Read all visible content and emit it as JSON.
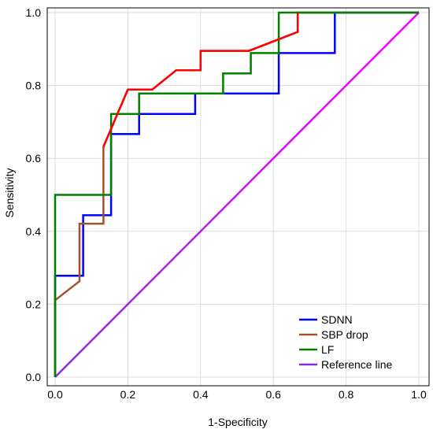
{
  "chart_data": {
    "type": "line",
    "title": "",
    "xlabel": "1-Specificity",
    "ylabel": "Sensitivity",
    "xlim": [
      0,
      1
    ],
    "ylim": [
      0,
      1
    ],
    "x_ticks": [
      "0.0",
      "0.2",
      "0.4",
      "0.6",
      "0.8",
      "1.0"
    ],
    "y_ticks": [
      "0.0",
      "0.2",
      "0.4",
      "0.6",
      "0.8",
      "1.0"
    ],
    "grid": true,
    "legend_position": "bottom-right",
    "series": [
      {
        "name": "SDNN",
        "color": "#0000ff",
        "x": [
          0,
          0,
          0.077,
          0.077,
          0.154,
          0.154,
          0.231,
          0.231,
          0.385,
          0.385,
          0.615,
          0.615,
          0.769,
          0.769,
          1.0
        ],
        "y": [
          0,
          0.278,
          0.278,
          0.444,
          0.444,
          0.667,
          0.667,
          0.722,
          0.722,
          0.778,
          0.778,
          0.889,
          0.889,
          1.0,
          1.0
        ]
      },
      {
        "name": "SBP drop",
        "color": "#a0522d",
        "x": [
          0,
          0,
          0.067,
          0.067,
          0.133,
          0.133,
          0.2,
          0.267,
          0.333,
          0.4,
          0.4,
          0.533,
          0.667,
          0.667,
          1.0
        ],
        "y": [
          0,
          0.211,
          0.263,
          0.421,
          0.421,
          0.632,
          0.789,
          0.789,
          0.842,
          0.842,
          0.895,
          0.895,
          0.947,
          1.0,
          1.0
        ]
      },
      {
        "name": "LF",
        "color": "#008000",
        "x": [
          0,
          0,
          0.154,
          0.154,
          0.231,
          0.231,
          0.462,
          0.462,
          0.538,
          0.538,
          0.615,
          0.615,
          1.0
        ],
        "y": [
          0,
          0.5,
          0.5,
          0.722,
          0.722,
          0.778,
          0.778,
          0.833,
          0.833,
          0.889,
          0.889,
          1.0,
          1.0
        ]
      },
      {
        "name": "Reference line",
        "color": "#ff00ff",
        "color_end": "#8a2be2",
        "x": [
          0,
          1
        ],
        "y": [
          0,
          1
        ]
      }
    ]
  },
  "overlay_series": [
    {
      "color": "#ff0000",
      "x": [
        0.133,
        0.2,
        0.267,
        0.333,
        0.4,
        0.4,
        0.533,
        0.667,
        0.667
      ],
      "y": [
        0.632,
        0.789,
        0.789,
        0.842,
        0.842,
        0.895,
        0.895,
        0.947,
        1.0
      ]
    }
  ]
}
